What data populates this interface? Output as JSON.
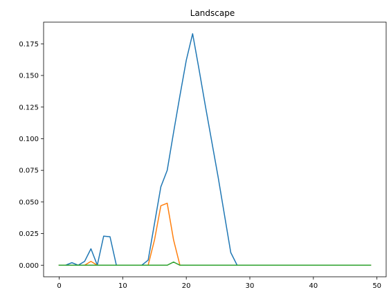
{
  "chart_data": {
    "type": "line",
    "title": "Landscape",
    "xlabel": "",
    "ylabel": "",
    "xlim": [
      -2.45,
      51.45
    ],
    "ylim": [
      -0.00915,
      0.19215
    ],
    "xticks": [
      0,
      10,
      20,
      30,
      40,
      50
    ],
    "xtick_labels": [
      "0",
      "10",
      "20",
      "30",
      "40",
      "50"
    ],
    "yticks": [
      0.0,
      0.025,
      0.05,
      0.075,
      0.1,
      0.125,
      0.15,
      0.175
    ],
    "ytick_labels": [
      "0.000",
      "0.025",
      "0.050",
      "0.075",
      "0.100",
      "0.125",
      "0.150",
      "0.175"
    ],
    "grid": false,
    "x": [
      0,
      1,
      2,
      3,
      4,
      5,
      6,
      7,
      8,
      9,
      10,
      11,
      12,
      13,
      14,
      15,
      16,
      17,
      18,
      19,
      20,
      21,
      22,
      23,
      24,
      25,
      26,
      27,
      28,
      29,
      30,
      31,
      32,
      33,
      34,
      35,
      36,
      37,
      38,
      39,
      40,
      41,
      42,
      43,
      44,
      45,
      46,
      47,
      48,
      49
    ],
    "series": [
      {
        "color": "#1f77b4",
        "values": [
          0,
          0,
          0.002,
          0,
          0.003,
          0.013,
          0,
          0.023,
          0.0225,
          0,
          0,
          0,
          0,
          0,
          0.004,
          0.033,
          0.062,
          0.075,
          0.105,
          0.134,
          0.162,
          0.183,
          0.155,
          0.126,
          0.098,
          0.07,
          0.04,
          0.01,
          0,
          0,
          0,
          0,
          0,
          0,
          0,
          0,
          0,
          0,
          0,
          0,
          0,
          0,
          0,
          0,
          0,
          0,
          0,
          0,
          0,
          0
        ]
      },
      {
        "color": "#ff7f0e",
        "values": [
          0,
          0,
          0,
          0,
          0,
          0.003,
          0,
          0,
          0,
          0,
          0,
          0,
          0,
          0,
          0,
          0.02,
          0.047,
          0.049,
          0.02,
          0,
          0,
          0,
          0,
          0,
          0,
          0,
          0,
          0,
          0,
          0,
          0,
          0,
          0,
          0,
          0,
          0,
          0,
          0,
          0,
          0,
          0,
          0,
          0,
          0,
          0,
          0,
          0,
          0,
          0,
          0
        ]
      },
      {
        "color": "#2ca02c",
        "values": [
          0,
          0,
          0,
          0,
          0,
          0,
          0,
          0,
          0,
          0,
          0,
          0,
          0,
          0,
          0,
          0,
          0,
          0,
          0.0025,
          0,
          0,
          0,
          0,
          0,
          0,
          0,
          0,
          0,
          0,
          0,
          0,
          0,
          0,
          0,
          0,
          0,
          0,
          0,
          0,
          0,
          0,
          0,
          0,
          0,
          0,
          0,
          0,
          0,
          0,
          0
        ]
      }
    ]
  }
}
